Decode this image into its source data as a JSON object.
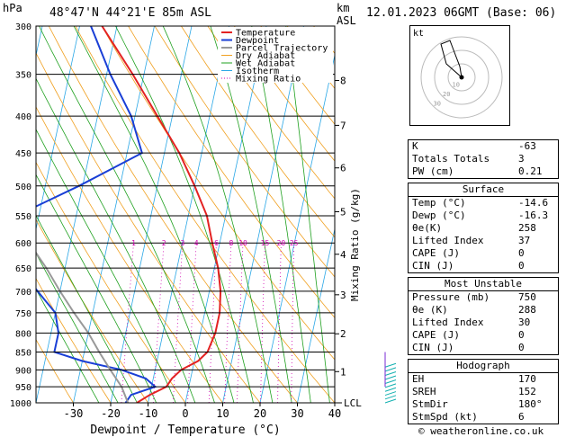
{
  "header": {
    "hpa_label": "hPa",
    "location": "48°47'N 44°21'E 85m ASL",
    "km_label": "km",
    "asl_label": "ASL",
    "datetime": "12.01.2023 06GMT (Base: 06)"
  },
  "legend": [
    {
      "label": "Temperature",
      "color": "#e32222"
    },
    {
      "label": "Dewpoint",
      "color": "#1a3fd6"
    },
    {
      "label": "Parcel Trajectory",
      "color": "#999999"
    },
    {
      "label": "Dry Adiabat",
      "color": "#f0a020"
    },
    {
      "label": "Wet Adiabat",
      "color": "#1fa01f"
    },
    {
      "label": "Isotherm",
      "color": "#2aa7e6"
    },
    {
      "label": "Mixing Ratio",
      "color": "#d000b0"
    }
  ],
  "chart_data": {
    "type": "line",
    "title": "",
    "xlabel": "Dewpoint / Temperature (°C)",
    "ylabel": "hPa",
    "right_axis_label": "Mixing Ratio (g/kg)",
    "xlim": [
      -40,
      40
    ],
    "x_ticks": [
      -30,
      -20,
      -10,
      0,
      10,
      20,
      30,
      40
    ],
    "pressure_levels": [
      300,
      350,
      400,
      450,
      500,
      550,
      600,
      650,
      700,
      750,
      800,
      850,
      900,
      950,
      1000
    ],
    "km_ticks": [
      {
        "label": "8",
        "p": 357
      },
      {
        "label": "7",
        "p": 412
      },
      {
        "label": "6",
        "p": 472
      },
      {
        "label": "5",
        "p": 543
      },
      {
        "label": "4",
        "p": 622
      },
      {
        "label": "3",
        "p": 708
      },
      {
        "label": "2",
        "p": 802
      },
      {
        "label": "1",
        "p": 905
      }
    ],
    "lcl_label": "LCL",
    "lcl_p": 1000,
    "mixing_ratio_labels": [
      "1",
      "2",
      "3",
      "4",
      "6",
      "8",
      "10",
      "15",
      "20",
      "25"
    ],
    "mixing_ratio_values": [
      1,
      2,
      3,
      4,
      6,
      8,
      10,
      15,
      20,
      25
    ],
    "series": [
      {
        "name": "Temperature",
        "points": [
          [
            1015,
            -14.6
          ],
          [
            1000,
            -13
          ],
          [
            975,
            -10
          ],
          [
            950,
            -6
          ],
          [
            925,
            -5
          ],
          [
            900,
            -3
          ],
          [
            875,
            1
          ],
          [
            850,
            3
          ],
          [
            800,
            4
          ],
          [
            750,
            4
          ],
          [
            700,
            3
          ],
          [
            650,
            1
          ],
          [
            600,
            -2
          ],
          [
            550,
            -5
          ],
          [
            500,
            -10
          ],
          [
            450,
            -16
          ],
          [
            400,
            -24
          ],
          [
            350,
            -33
          ],
          [
            300,
            -44
          ]
        ]
      },
      {
        "name": "Dewpoint",
        "points": [
          [
            1015,
            -16.3
          ],
          [
            1000,
            -16
          ],
          [
            975,
            -15
          ],
          [
            950,
            -9
          ],
          [
            925,
            -12
          ],
          [
            900,
            -19
          ],
          [
            875,
            -30
          ],
          [
            850,
            -38
          ],
          [
            800,
            -38
          ],
          [
            750,
            -40
          ],
          [
            700,
            -46
          ],
          [
            650,
            -52
          ],
          [
            600,
            -58
          ],
          [
            550,
            -56
          ],
          [
            500,
            -41
          ],
          [
            450,
            -26
          ],
          [
            400,
            -31
          ],
          [
            350,
            -39
          ],
          [
            300,
            -47
          ]
        ]
      },
      {
        "name": "Parcel Trajectory",
        "points": [
          [
            1015,
            -14.6
          ],
          [
            950,
            -18
          ],
          [
            900,
            -22
          ],
          [
            850,
            -26
          ],
          [
            800,
            -30
          ],
          [
            750,
            -35
          ],
          [
            700,
            -40
          ],
          [
            650,
            -45
          ],
          [
            600,
            -51
          ],
          [
            550,
            -57
          ]
        ]
      }
    ]
  },
  "hodograph": {
    "label": "kt",
    "ring_labels": [
      "10",
      "20",
      "30"
    ]
  },
  "indices": [
    {
      "k": "K",
      "v": "-63"
    },
    {
      "k": "Totals Totals",
      "v": "3"
    },
    {
      "k": "PW (cm)",
      "v": "0.21"
    }
  ],
  "surface": {
    "title": "Surface",
    "rows": [
      {
        "k": "Temp (°C)",
        "v": "-14.6"
      },
      {
        "k": "Dewp (°C)",
        "v": "-16.3"
      },
      {
        "k": "θe(K)",
        "v": "258"
      },
      {
        "k": "Lifted Index",
        "v": "37"
      },
      {
        "k": "CAPE (J)",
        "v": "0"
      },
      {
        "k": "CIN (J)",
        "v": "0"
      }
    ]
  },
  "most_unstable": {
    "title": "Most Unstable",
    "rows": [
      {
        "k": "Pressure (mb)",
        "v": "750"
      },
      {
        "k": "θe (K)",
        "v": "288"
      },
      {
        "k": "Lifted Index",
        "v": "30"
      },
      {
        "k": "CAPE (J)",
        "v": "0"
      },
      {
        "k": "CIN (J)",
        "v": "0"
      }
    ]
  },
  "hodograph_table": {
    "title": "Hodograph",
    "rows": [
      {
        "k": "EH",
        "v": "170"
      },
      {
        "k": "SREH",
        "v": "152"
      },
      {
        "k": "StmDir",
        "v": "180°"
      },
      {
        "k": "StmSpd (kt)",
        "v": "6"
      }
    ]
  },
  "footer": "© weatheronline.co.uk"
}
